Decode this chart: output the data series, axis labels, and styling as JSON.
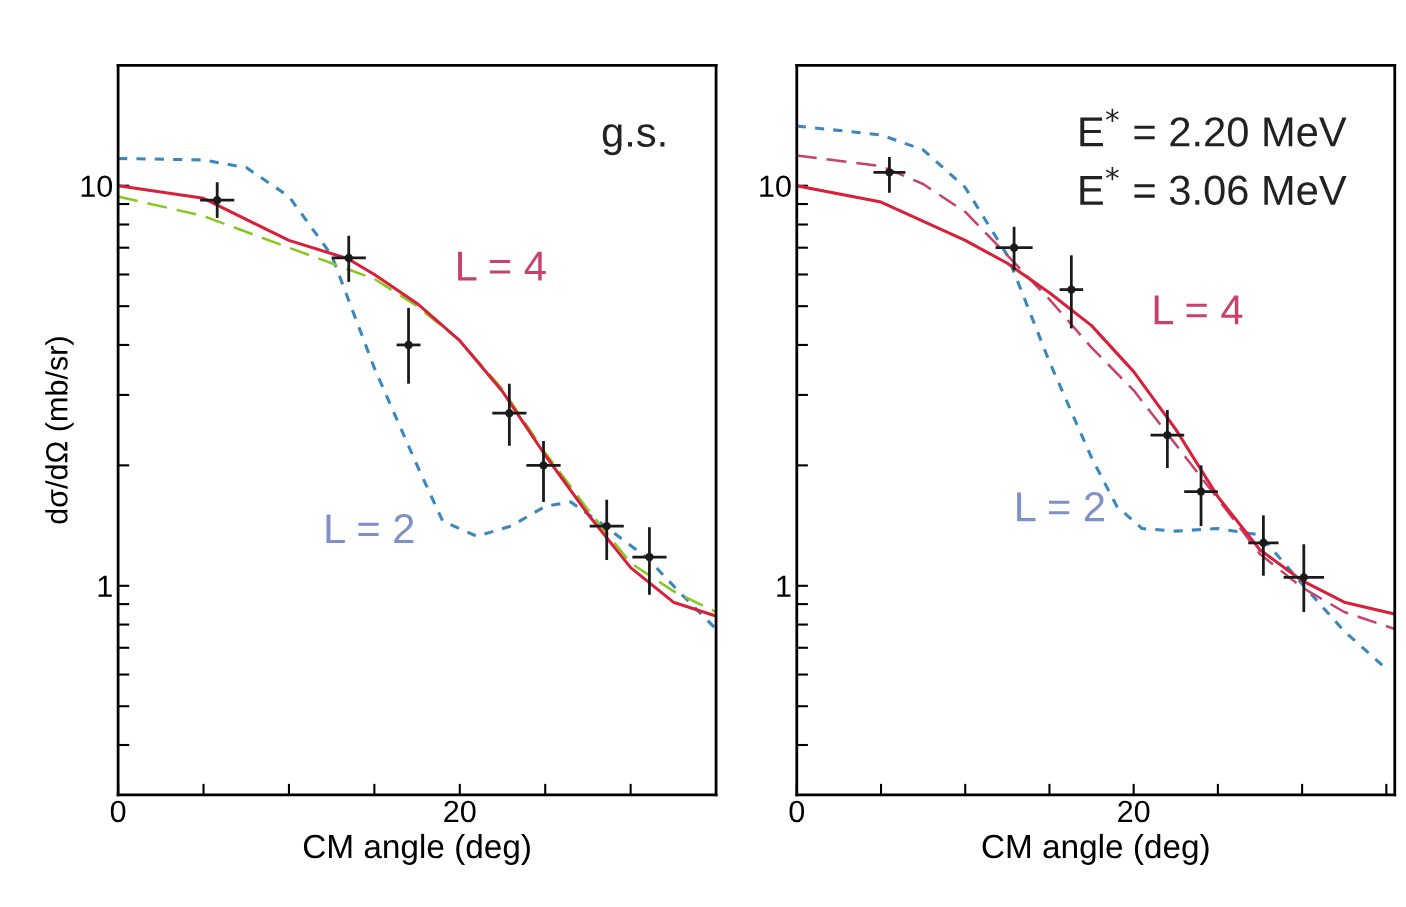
{
  "chart_data": [
    {
      "type": "line",
      "xlabel": "CM angle (deg)",
      "ylabel": "dσ/dΩ (mb/sr)",
      "log": "y",
      "marker": "none",
      "xlim": [
        0,
        35
      ],
      "xticks": [
        0,
        {
          "value": 5,
          "label": null
        },
        {
          "value": 10,
          "label": null
        },
        {
          "value": 15,
          "label": null
        },
        20,
        {
          "value": 25,
          "label": null
        },
        {
          "value": 30,
          "label": null
        }
      ],
      "ylim": [
        0.3,
        20
      ],
      "yticks": [
        {
          "value": 0.4,
          "label": null
        },
        {
          "value": 0.5,
          "label": null
        },
        {
          "value": 0.6,
          "label": null
        },
        {
          "value": 0.7,
          "label": null
        },
        {
          "value": 0.8,
          "label": null
        },
        {
          "value": 0.9,
          "label": null
        },
        1,
        {
          "value": 2,
          "label": null
        },
        {
          "value": 3,
          "label": null
        },
        {
          "value": 4,
          "label": null
        },
        {
          "value": 5,
          "label": null
        },
        {
          "value": 6,
          "label": null
        },
        {
          "value": 7,
          "label": null
        },
        {
          "value": 8,
          "label": null
        },
        {
          "value": 9,
          "label": null
        },
        10
      ],
      "annotations": [
        "g.s.",
        "L = 4",
        "L = 2"
      ],
      "series": [
        {
          "color": "#3a86c0",
          "line_style": "dotted",
          "x": [
            0,
            5,
            7.5,
            10,
            12.5,
            15,
            17.5,
            19,
            21,
            23,
            25,
            26.5,
            28.5,
            31,
            33,
            35
          ],
          "values": [
            11.7,
            11.6,
            11.1,
            9.4,
            6.7,
            3.5,
            2.0,
            1.45,
            1.33,
            1.41,
            1.58,
            1.62,
            1.41,
            1.17,
            0.95,
            0.78
          ]
        },
        {
          "color": "#86c81e",
          "line_style": "dashed",
          "x": [
            0,
            5,
            10,
            15,
            17.5,
            20,
            22.5,
            25,
            27.5,
            30,
            32.5,
            35
          ],
          "values": [
            9.4,
            8.4,
            7.0,
            5.85,
            5.0,
            4.1,
            3.1,
            2.15,
            1.55,
            1.14,
            0.97,
            0.86
          ]
        },
        {
          "color": "#d8203a",
          "line_style": "solid",
          "x": [
            0,
            5,
            10,
            13.45,
            15,
            17.5,
            20,
            22.5,
            25,
            27.5,
            30,
            32.5,
            35
          ],
          "values": [
            10.0,
            9.3,
            7.3,
            6.57,
            6.0,
            5.08,
            4.1,
            3.06,
            2.12,
            1.51,
            1.11,
            0.91,
            0.84
          ]
        },
        {
          "type": "scatter",
          "marker": "circle",
          "color": "#1a1a1a",
          "x": [
            5.8,
            13.5,
            17.0,
            22.9,
            24.9,
            28.6,
            31.1
          ],
          "values": [
            9.2,
            6.6,
            4.0,
            2.7,
            2.0,
            1.41,
            1.18
          ],
          "errors": [
            [
              8.3,
              10.2
            ],
            [
              5.75,
              7.5
            ],
            [
              3.2,
              4.95
            ],
            [
              2.24,
              3.2
            ],
            [
              1.62,
              2.3
            ],
            [
              1.16,
              1.64
            ],
            [
              0.95,
              1.4
            ]
          ],
          "xerrors": [
            1.0,
            1.0,
            0.7,
            1.0,
            1.0,
            1.0,
            1.0
          ]
        }
      ]
    },
    {
      "type": "line",
      "xlabel": "CM angle (deg)",
      "log": "y",
      "marker": "none",
      "xlim": [
        0,
        35.5
      ],
      "xticks": [
        0,
        {
          "value": 5,
          "label": null
        },
        {
          "value": 10,
          "label": null
        },
        {
          "value": 15,
          "label": null
        },
        20,
        {
          "value": 25,
          "label": null
        },
        {
          "value": 30,
          "label": null
        },
        {
          "value": 35,
          "label": null
        }
      ],
      "ylim": [
        0.3,
        20
      ],
      "yticks": [
        {
          "value": 0.4,
          "label": null
        },
        {
          "value": 0.5,
          "label": null
        },
        {
          "value": 0.6,
          "label": null
        },
        {
          "value": 0.7,
          "label": null
        },
        {
          "value": 0.8,
          "label": null
        },
        {
          "value": 0.9,
          "label": null
        },
        1,
        {
          "value": 2,
          "label": null
        },
        {
          "value": 3,
          "label": null
        },
        {
          "value": 4,
          "label": null
        },
        {
          "value": 5,
          "label": null
        },
        {
          "value": 6,
          "label": null
        },
        {
          "value": 7,
          "label": null
        },
        {
          "value": 8,
          "label": null
        },
        {
          "value": 9,
          "label": null
        },
        10
      ],
      "annotations": [
        "E$^{*}$ = 2.20 MeV",
        "E$^{*}$ = 3.06 MeV",
        "L = 4",
        "L = 2"
      ],
      "series": [
        {
          "color": "#3a86c0",
          "line_style": "dotted",
          "x": [
            0,
            5,
            7.5,
            10,
            12.5,
            15,
            17.5,
            19,
            20.5,
            22.5,
            25,
            27.5,
            30,
            32.5,
            35
          ],
          "values": [
            14.1,
            13.4,
            12.3,
            9.9,
            6.7,
            3.63,
            2.09,
            1.58,
            1.39,
            1.37,
            1.39,
            1.34,
            1.01,
            0.77,
            0.62
          ]
        },
        {
          "color": "#c8406e",
          "line_style": "dashed",
          "x": [
            0,
            5,
            7.5,
            10,
            12.5,
            15,
            17.5,
            20,
            22,
            25,
            27.5,
            30,
            32.5,
            35.5
          ],
          "values": [
            11.9,
            11.2,
            10.1,
            8.6,
            6.7,
            5.2,
            3.94,
            3.08,
            2.4,
            1.65,
            1.2,
            0.99,
            0.86,
            0.78
          ]
        },
        {
          "color": "#d8203a",
          "line_style": "solid",
          "x": [
            0,
            5,
            10,
            12.5,
            15,
            17.5,
            20,
            22.5,
            25,
            27.5,
            30,
            32.5,
            35.5
          ],
          "values": [
            10.0,
            9.1,
            7.3,
            6.4,
            5.4,
            4.47,
            3.43,
            2.46,
            1.67,
            1.23,
            1.03,
            0.91,
            0.85
          ]
        },
        {
          "type": "scatter",
          "marker": "circle",
          "color": "#1a1a1a",
          "x": [
            5.5,
            12.9,
            16.3,
            22.0,
            24.0,
            27.7,
            30.1
          ],
          "values": [
            10.8,
            7.0,
            5.5,
            2.38,
            1.72,
            1.28,
            1.05
          ],
          "errors": [
            [
              9.6,
              11.8
            ],
            [
              6.15,
              7.9
            ],
            [
              4.4,
              6.7
            ],
            [
              1.97,
              2.75
            ],
            [
              1.41,
              2.0
            ],
            [
              1.06,
              1.5
            ],
            [
              0.86,
              1.27
            ]
          ],
          "xerrors": [
            0.95,
            1.1,
            0.7,
            1.0,
            1.0,
            0.9,
            1.2
          ]
        }
      ]
    }
  ]
}
